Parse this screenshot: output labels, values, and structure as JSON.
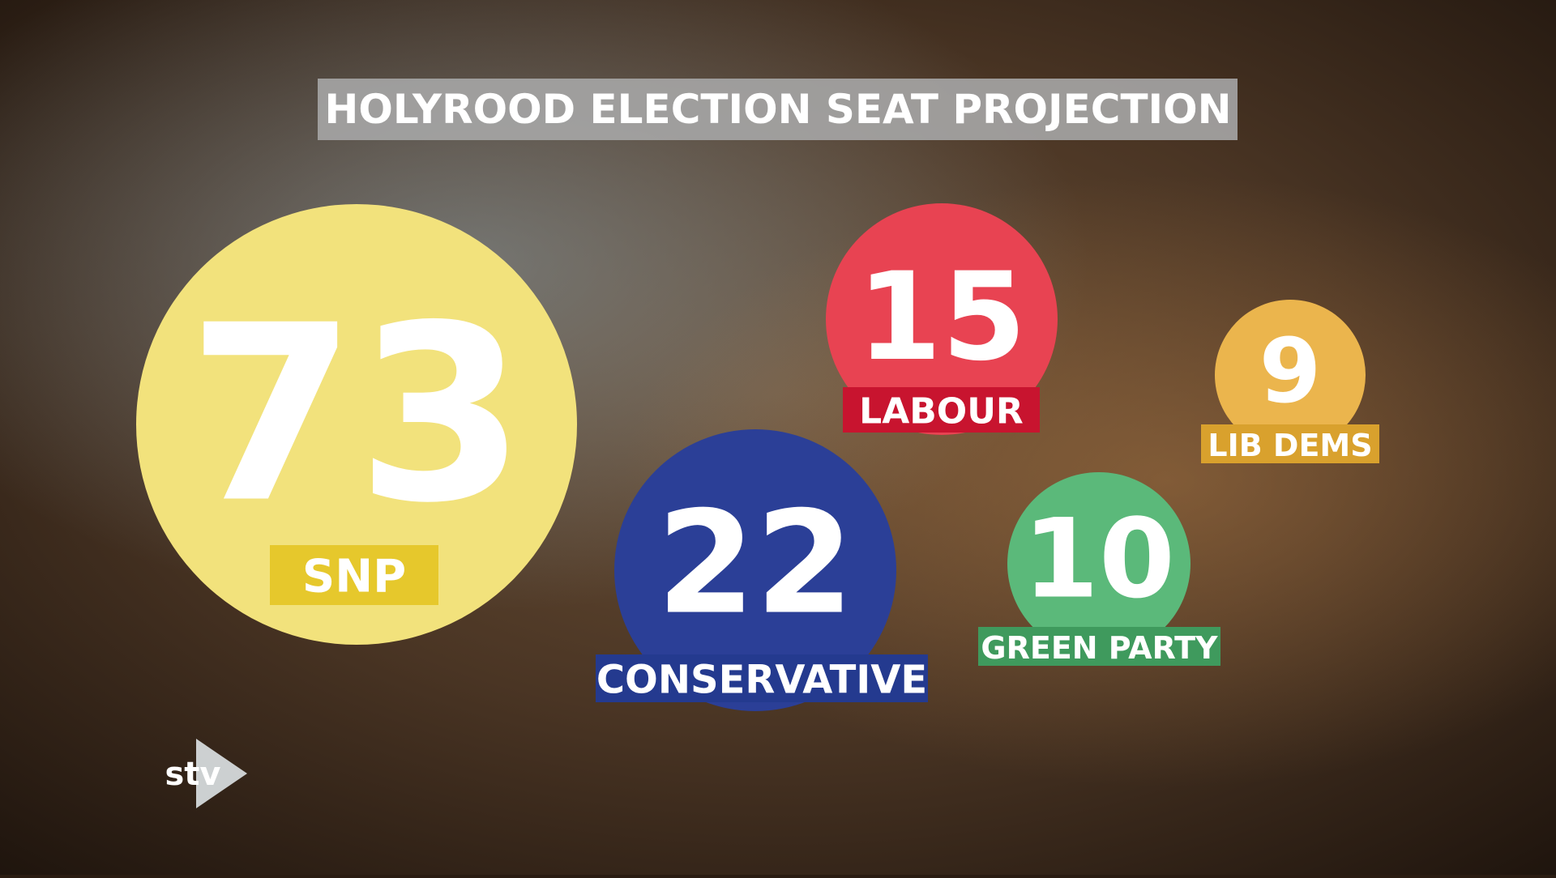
{
  "chart_data": {
    "type": "bubble",
    "title": "HOLYROOD ELECTION SEAT PROJECTION",
    "categories": [
      "SNP",
      "LABOUR",
      "LIB DEMS",
      "CONSERVATIVE",
      "GREEN PARTY"
    ],
    "values": [
      73,
      15,
      9,
      22,
      10
    ],
    "colors": [
      "#f2e27c",
      "#e84352",
      "#ebb54d",
      "#2b3f97",
      "#5bb97a"
    ],
    "label_colors": [
      "#e6c82c",
      "#c8142f",
      "#d9a12d",
      "#243a8f",
      "#3f9a5d"
    ]
  },
  "logo": "stv"
}
